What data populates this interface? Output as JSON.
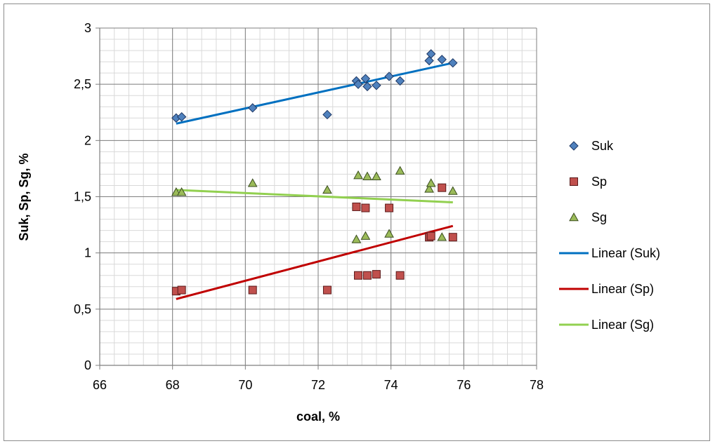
{
  "chart_data": {
    "type": "scatter",
    "title": "",
    "xlabel": "coal, %",
    "ylabel": "Suk, Sp, Sg, %",
    "xlim": [
      66,
      78
    ],
    "ylim": [
      0,
      3
    ],
    "x_ticks": [
      66,
      68,
      70,
      72,
      74,
      76,
      78
    ],
    "x_tick_labels": [
      "66",
      "68",
      "70",
      "72",
      "74",
      "76",
      "78"
    ],
    "y_ticks": [
      0,
      0.5,
      1,
      1.5,
      2,
      2.5,
      3
    ],
    "y_tick_labels": [
      "0",
      "0,5",
      "1",
      "1,5",
      "2",
      "2,5",
      "3"
    ],
    "x_minor_step": 0.4,
    "y_minor_step": 0.1,
    "grid": true,
    "legend_position": "right",
    "series": [
      {
        "name": "Suk",
        "marker": "diamond",
        "color": "#4f81bd",
        "edge_color": "#1f3864",
        "points": [
          [
            68.1,
            2.2
          ],
          [
            68.25,
            2.21
          ],
          [
            70.2,
            2.29
          ],
          [
            72.25,
            2.23
          ],
          [
            73.05,
            2.53
          ],
          [
            73.1,
            2.5
          ],
          [
            73.3,
            2.55
          ],
          [
            73.35,
            2.48
          ],
          [
            73.6,
            2.49
          ],
          [
            73.95,
            2.57
          ],
          [
            74.25,
            2.53
          ],
          [
            75.05,
            2.71
          ],
          [
            75.1,
            2.77
          ],
          [
            75.4,
            2.72
          ],
          [
            75.7,
            2.69
          ]
        ]
      },
      {
        "name": "Sp",
        "marker": "square",
        "color": "#c0504d",
        "edge_color": "#5a1a1a",
        "points": [
          [
            68.1,
            0.66
          ],
          [
            68.25,
            0.67
          ],
          [
            70.2,
            0.67
          ],
          [
            72.25,
            0.67
          ],
          [
            73.05,
            1.41
          ],
          [
            73.1,
            0.8
          ],
          [
            73.3,
            1.4
          ],
          [
            73.35,
            0.8
          ],
          [
            73.6,
            0.81
          ],
          [
            73.95,
            1.4
          ],
          [
            74.25,
            0.8
          ],
          [
            75.05,
            1.14
          ],
          [
            75.1,
            1.15
          ],
          [
            75.4,
            1.58
          ],
          [
            75.7,
            1.14
          ]
        ]
      },
      {
        "name": "Sg",
        "marker": "triangle",
        "color": "#9bbb59",
        "edge_color": "#3a4d1f",
        "points": [
          [
            68.1,
            1.54
          ],
          [
            68.25,
            1.54
          ],
          [
            70.2,
            1.62
          ],
          [
            72.25,
            1.56
          ],
          [
            73.05,
            1.12
          ],
          [
            73.1,
            1.69
          ],
          [
            73.3,
            1.15
          ],
          [
            73.35,
            1.68
          ],
          [
            73.6,
            1.68
          ],
          [
            73.95,
            1.17
          ],
          [
            74.25,
            1.73
          ],
          [
            75.05,
            1.57
          ],
          [
            75.1,
            1.62
          ],
          [
            75.4,
            1.14
          ],
          [
            75.7,
            1.55
          ]
        ]
      }
    ],
    "trendlines": [
      {
        "name": "Linear (Suk)",
        "color": "#0070c0",
        "x": [
          68.1,
          75.7
        ],
        "y": [
          2.15,
          2.69
        ]
      },
      {
        "name": "Linear (Sp)",
        "color": "#c00000",
        "x": [
          68.1,
          75.7
        ],
        "y": [
          0.59,
          1.24
        ]
      },
      {
        "name": "Linear (Sg)",
        "color": "#92d050",
        "x": [
          68.1,
          75.7
        ],
        "y": [
          1.56,
          1.45
        ]
      }
    ]
  }
}
